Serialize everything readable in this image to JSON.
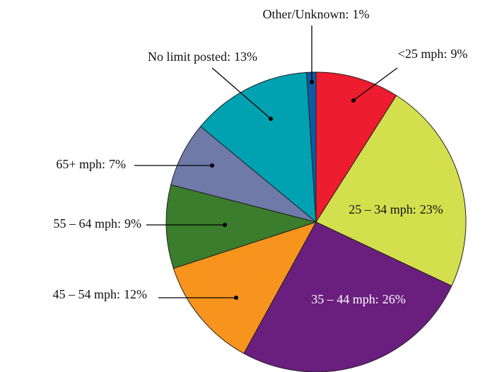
{
  "chart_data": {
    "type": "pie",
    "categories": [
      "<25 mph:",
      "25 – 34 mph:",
      "35 – 44 mph:",
      "45 – 54 mph:",
      "55 – 64 mph:",
      "65+ mph:",
      "No limit posted:",
      "Other/Unknown:"
    ],
    "values": [
      9,
      23,
      26,
      12,
      9,
      7,
      13,
      1
    ],
    "value_labels": [
      "9%",
      "23%",
      "26%",
      "12%",
      "9%",
      "7%",
      "13%",
      "1%"
    ],
    "colors": [
      "#ed1c2e",
      "#d4df4d",
      "#6a1f7e",
      "#f7941d",
      "#3a7d2c",
      "#6f7aa8",
      "#00a1b0",
      "#0d5aa7"
    ]
  }
}
